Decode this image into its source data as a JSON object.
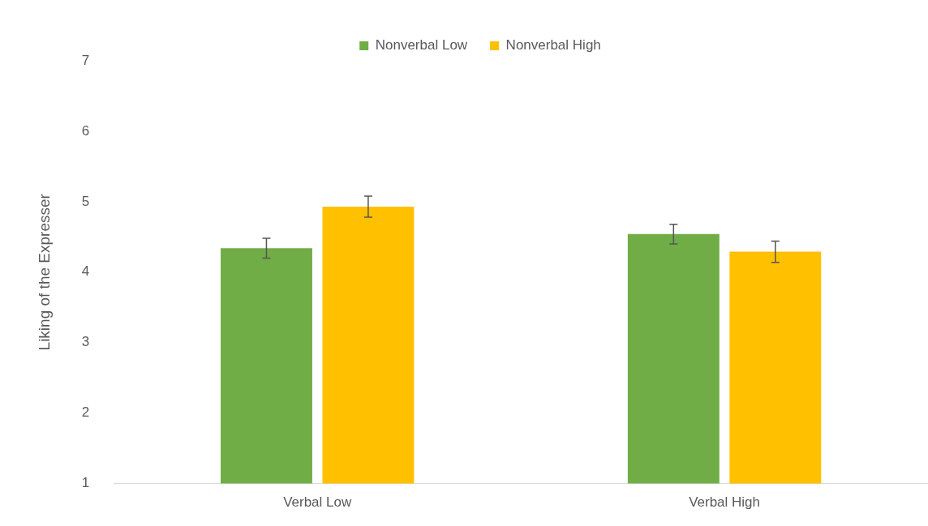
{
  "chart_data": {
    "type": "bar",
    "ylabel": "Liking of the Expresser",
    "categories": [
      "Verbal Low",
      "Verbal High"
    ],
    "series": [
      {
        "name": "Nonverbal Low",
        "color": "#70ad47",
        "values": [
          4.34,
          4.54
        ],
        "errors": [
          0.14,
          0.14
        ]
      },
      {
        "name": "Nonverbal High",
        "color": "#ffc000",
        "values": [
          4.93,
          4.29
        ],
        "errors": [
          0.15,
          0.15
        ]
      }
    ],
    "ylim": [
      1,
      7
    ],
    "yticks": [
      1,
      2,
      3,
      4,
      5,
      6,
      7
    ],
    "grid": false,
    "legend": "top"
  }
}
